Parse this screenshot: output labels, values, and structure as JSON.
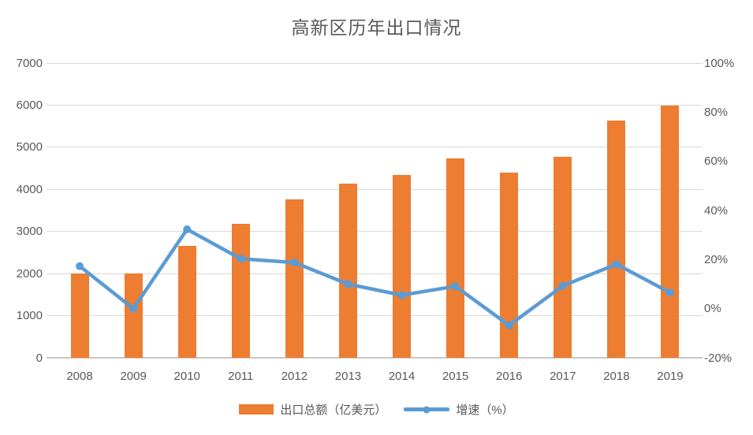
{
  "chart_data": {
    "type": "combo_bar_line",
    "title": "高新区历年出口情况",
    "categories": [
      "2008",
      "2009",
      "2010",
      "2011",
      "2012",
      "2013",
      "2014",
      "2015",
      "2016",
      "2017",
      "2018",
      "2019"
    ],
    "series": [
      {
        "name": "出口总额（亿美元）",
        "type": "bar",
        "axis": "left",
        "color": "#ED7D31",
        "values": [
          2000,
          2000,
          2650,
          3180,
          3760,
          4140,
          4340,
          4740,
          4390,
          4780,
          5640,
          5990
        ]
      },
      {
        "name": "增速（%）",
        "type": "line",
        "axis": "right",
        "color": "#5B9BD5",
        "values": [
          17.3,
          0.0,
          32.3,
          20.3,
          18.8,
          10.0,
          5.5,
          9.1,
          -6.8,
          9.3,
          18.1,
          6.5
        ]
      }
    ],
    "left_axis": {
      "min": 0,
      "max": 7000,
      "step": 1000,
      "tick_labels": [
        "0",
        "1000",
        "2000",
        "3000",
        "4000",
        "5000",
        "6000",
        "7000"
      ]
    },
    "right_axis": {
      "min": -20,
      "max": 100,
      "step": 20,
      "tick_labels": [
        "-20%",
        "0%",
        "20%",
        "40%",
        "60%",
        "80%",
        "100%"
      ]
    },
    "grid": true,
    "legend_position": "bottom",
    "colors": {
      "grid": "#D9D9D9",
      "axis_line": "#C9C7C7",
      "text": "#595959",
      "background": "#FFFFFF"
    }
  }
}
